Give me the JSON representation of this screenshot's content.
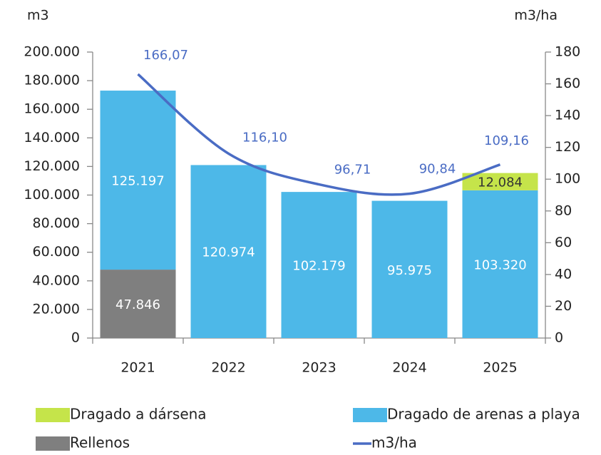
{
  "chart_data": {
    "type": "bar",
    "y_label": "m3",
    "y2_label": "m3/ha",
    "categories": [
      "2021",
      "2022",
      "2023",
      "2024",
      "2025"
    ],
    "series": [
      {
        "name": "Rellenos",
        "color": "#7f7f7f",
        "values": [
          47846,
          null,
          null,
          null,
          null
        ],
        "value_labels": [
          "47.846",
          null,
          null,
          null,
          null
        ]
      },
      {
        "name": "Dragado de arenas a playa",
        "color": "#4db8e8",
        "values": [
          125197,
          120974,
          102179,
          95975,
          103320
        ],
        "value_labels": [
          "125.197",
          "120.974",
          "102.179",
          "95.975",
          "103.320"
        ]
      },
      {
        "name": "Dragado a dársena",
        "color": "#c5e44a",
        "values": [
          null,
          null,
          null,
          null,
          12084
        ],
        "value_labels": [
          null,
          null,
          null,
          null,
          "12.084"
        ]
      },
      {
        "name": "m3/ha",
        "type": "line",
        "axis": "y2",
        "color": "#4a6cc4",
        "values": [
          166.07,
          116.1,
          96.71,
          90.84,
          109.16
        ],
        "value_labels": [
          "166,07",
          "116,10",
          "96,71",
          "90,84",
          "109,16"
        ]
      }
    ],
    "ylim": [
      0,
      200000
    ],
    "yticks": [
      0,
      {
        "value": 20000,
        "label": "20.000"
      },
      {
        "value": 40000,
        "label": "40.000"
      },
      {
        "value": 60000,
        "label": "60.000"
      },
      {
        "value": 80000,
        "label": "80.000"
      },
      {
        "value": 100000,
        "label": "100.000"
      },
      {
        "value": 120000,
        "label": "120.000"
      },
      {
        "value": 140000,
        "label": "140.000"
      },
      {
        "value": 160000,
        "label": "160.000"
      },
      {
        "value": 180000,
        "label": "180.000"
      },
      {
        "value": 200000,
        "label": "200.000"
      }
    ],
    "y2lim": [
      0,
      180
    ],
    "y2ticks": [
      0,
      20,
      40,
      60,
      80,
      100,
      120,
      140,
      160,
      180
    ],
    "grid": false,
    "stacked": true
  }
}
